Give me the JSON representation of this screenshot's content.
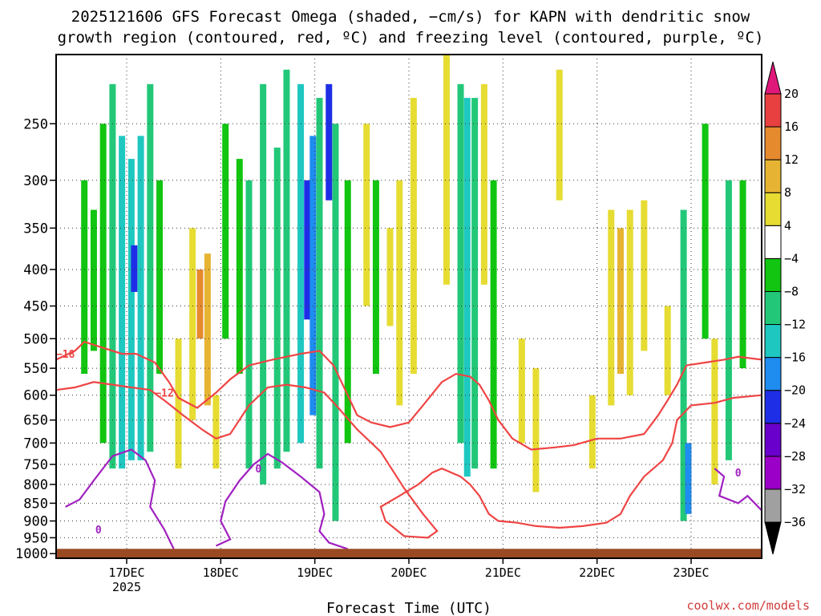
{
  "chart_data": {
    "type": "heatmap",
    "title_line1": "2025121606 GFS Forecast Omega (shaded, −cm/s) for KAPN with dendritic snow",
    "title_line2": "growth region (contoured, red, ºC) and freezing level (contoured, purple, ºC)",
    "xlabel": "Forecast Time (UTC)",
    "x_ticks": [
      {
        "label": "17DEC",
        "sub": "2025",
        "day": 17
      },
      {
        "label": "18DEC",
        "sub": "",
        "day": 18
      },
      {
        "label": "19DEC",
        "sub": "",
        "day": 19
      },
      {
        "label": "20DEC",
        "sub": "",
        "day": 20
      },
      {
        "label": "21DEC",
        "sub": "",
        "day": 21
      },
      {
        "label": "22DEC",
        "sub": "",
        "day": 22
      },
      {
        "label": "23DEC",
        "sub": "",
        "day": 23
      }
    ],
    "x_range_days": [
      16.25,
      23.75
    ],
    "y_axis": "pressure (hPa), reversed",
    "y_ticks": [
      250,
      300,
      350,
      400,
      450,
      500,
      550,
      600,
      650,
      700,
      750,
      800,
      850,
      900,
      950,
      1000
    ],
    "y_range_hpa": [
      200,
      1015
    ],
    "grid": "dotted",
    "colorbar": {
      "levels": [
        -36,
        -32,
        -28,
        -24,
        -20,
        -16,
        -12,
        -8,
        -4,
        4,
        8,
        12,
        16,
        20
      ],
      "colors": [
        "#000000",
        "#a0a0a0",
        "#9b00c8",
        "#6a00cc",
        "#1e2ee6",
        "#1f8cf0",
        "#1ec8c0",
        "#22c878",
        "#11c511",
        "#ffffff",
        "#e6dc32",
        "#e6b432",
        "#e68a2e",
        "#e84040",
        "#e0187a"
      ],
      "labels": [
        "−36",
        "−32",
        "−28",
        "−24",
        "−20",
        "−16",
        "−12",
        "−8",
        "−4",
        "4",
        "8",
        "12",
        "16",
        "20"
      ]
    },
    "omega_cells": [
      {
        "x": 16.55,
        "p1": 300,
        "p2": 560,
        "v": -5
      },
      {
        "x": 16.65,
        "p1": 330,
        "p2": 520,
        "v": -7
      },
      {
        "x": 16.75,
        "p1": 250,
        "p2": 700,
        "v": -6
      },
      {
        "x": 16.85,
        "p1": 220,
        "p2": 760,
        "v": -9
      },
      {
        "x": 16.95,
        "p1": 260,
        "p2": 760,
        "v": -12
      },
      {
        "x": 17.05,
        "p1": 280,
        "p2": 740,
        "v": -15
      },
      {
        "x": 17.08,
        "p1": 370,
        "p2": 430,
        "v": -22
      },
      {
        "x": 17.15,
        "p1": 260,
        "p2": 740,
        "v": -13
      },
      {
        "x": 17.25,
        "p1": 220,
        "p2": 720,
        "v": -9
      },
      {
        "x": 17.35,
        "p1": 300,
        "p2": 560,
        "v": -6
      },
      {
        "x": 17.55,
        "p1": 500,
        "p2": 760,
        "v": 5
      },
      {
        "x": 17.7,
        "p1": 350,
        "p2": 650,
        "v": 7
      },
      {
        "x": 17.78,
        "p1": 400,
        "p2": 500,
        "v": 16
      },
      {
        "x": 17.86,
        "p1": 380,
        "p2": 620,
        "v": 10
      },
      {
        "x": 17.95,
        "p1": 600,
        "p2": 760,
        "v": 5
      },
      {
        "x": 18.05,
        "p1": 250,
        "p2": 500,
        "v": -5
      },
      {
        "x": 18.2,
        "p1": 280,
        "p2": 560,
        "v": -7
      },
      {
        "x": 18.3,
        "p1": 300,
        "p2": 760,
        "v": -9
      },
      {
        "x": 18.45,
        "p1": 220,
        "p2": 800,
        "v": -8
      },
      {
        "x": 18.6,
        "p1": 270,
        "p2": 760,
        "v": -11
      },
      {
        "x": 18.7,
        "p1": 210,
        "p2": 720,
        "v": -9
      },
      {
        "x": 18.85,
        "p1": 220,
        "p2": 700,
        "v": -14
      },
      {
        "x": 18.92,
        "p1": 300,
        "p2": 470,
        "v": -22
      },
      {
        "x": 18.98,
        "p1": 260,
        "p2": 640,
        "v": -16
      },
      {
        "x": 19.05,
        "p1": 230,
        "p2": 760,
        "v": -11
      },
      {
        "x": 19.15,
        "p1": 220,
        "p2": 320,
        "v": -22
      },
      {
        "x": 19.22,
        "p1": 250,
        "p2": 900,
        "v": -8
      },
      {
        "x": 19.35,
        "p1": 300,
        "p2": 700,
        "v": -7
      },
      {
        "x": 19.55,
        "p1": 250,
        "p2": 450,
        "v": 5
      },
      {
        "x": 19.65,
        "p1": 300,
        "p2": 560,
        "v": -5
      },
      {
        "x": 19.8,
        "p1": 350,
        "p2": 480,
        "v": 7
      },
      {
        "x": 19.9,
        "p1": 300,
        "p2": 620,
        "v": 5
      },
      {
        "x": 20.05,
        "p1": 230,
        "p2": 560,
        "v": 5
      },
      {
        "x": 20.4,
        "p1": 200,
        "p2": 420,
        "v": 6
      },
      {
        "x": 20.55,
        "p1": 220,
        "p2": 700,
        "v": -8
      },
      {
        "x": 20.62,
        "p1": 230,
        "p2": 780,
        "v": -12
      },
      {
        "x": 20.7,
        "p1": 230,
        "p2": 760,
        "v": -10
      },
      {
        "x": 20.8,
        "p1": 220,
        "p2": 420,
        "v": 8
      },
      {
        "x": 20.9,
        "p1": 300,
        "p2": 760,
        "v": -6
      },
      {
        "x": 21.2,
        "p1": 500,
        "p2": 700,
        "v": 5
      },
      {
        "x": 21.35,
        "p1": 550,
        "p2": 820,
        "v": 6
      },
      {
        "x": 21.6,
        "p1": 210,
        "p2": 320,
        "v": 6
      },
      {
        "x": 21.95,
        "p1": 600,
        "p2": 760,
        "v": 6
      },
      {
        "x": 22.15,
        "p1": 330,
        "p2": 620,
        "v": 6
      },
      {
        "x": 22.25,
        "p1": 350,
        "p2": 560,
        "v": 10
      },
      {
        "x": 22.35,
        "p1": 330,
        "p2": 600,
        "v": 7
      },
      {
        "x": 22.5,
        "p1": 320,
        "p2": 520,
        "v": 6
      },
      {
        "x": 22.75,
        "p1": 450,
        "p2": 600,
        "v": 6
      },
      {
        "x": 22.92,
        "p1": 330,
        "p2": 900,
        "v": -8
      },
      {
        "x": 22.97,
        "p1": 700,
        "p2": 880,
        "v": -16
      },
      {
        "x": 23.15,
        "p1": 250,
        "p2": 500,
        "v": -6
      },
      {
        "x": 23.25,
        "p1": 500,
        "p2": 800,
        "v": 5
      },
      {
        "x": 23.4,
        "p1": 300,
        "p2": 740,
        "v": -10
      },
      {
        "x": 23.55,
        "p1": 300,
        "p2": 550,
        "v": -6
      }
    ],
    "contours": [
      {
        "color": "#ef4444",
        "label": "−18",
        "label_at": [
          16.35,
          525
        ],
        "points": [
          [
            16.25,
            535
          ],
          [
            16.45,
            520
          ],
          [
            16.55,
            505
          ],
          [
            16.75,
            515
          ],
          [
            16.95,
            525
          ],
          [
            17.1,
            525
          ],
          [
            17.3,
            540
          ],
          [
            17.45,
            575
          ],
          [
            17.55,
            605
          ],
          [
            17.75,
            625
          ],
          [
            17.95,
            595
          ],
          [
            18.1,
            570
          ],
          [
            18.3,
            545
          ],
          [
            18.55,
            535
          ],
          [
            18.85,
            525
          ],
          [
            19.05,
            520
          ],
          [
            19.2,
            545
          ],
          [
            19.35,
            600
          ],
          [
            19.45,
            640
          ],
          [
            19.6,
            655
          ],
          [
            19.8,
            665
          ],
          [
            20.0,
            655
          ],
          [
            20.15,
            620
          ],
          [
            20.35,
            575
          ],
          [
            20.5,
            560
          ],
          [
            20.65,
            565
          ],
          [
            20.75,
            580
          ],
          [
            20.85,
            610
          ],
          [
            20.95,
            650
          ],
          [
            21.1,
            690
          ],
          [
            21.3,
            715
          ],
          [
            21.55,
            710
          ],
          [
            21.75,
            705
          ],
          [
            22.0,
            690
          ],
          [
            22.25,
            690
          ],
          [
            22.5,
            680
          ],
          [
            22.65,
            640
          ],
          [
            22.75,
            610
          ],
          [
            22.85,
            580
          ],
          [
            22.95,
            545
          ],
          [
            23.15,
            540
          ],
          [
            23.35,
            535
          ],
          [
            23.5,
            530
          ],
          [
            23.75,
            535
          ]
        ]
      },
      {
        "color": "#ef4444",
        "label": "−12",
        "label_at": [
          17.4,
          595
        ],
        "points": [
          [
            16.25,
            590
          ],
          [
            16.45,
            585
          ],
          [
            16.65,
            575
          ],
          [
            16.85,
            580
          ],
          [
            17.05,
            585
          ],
          [
            17.25,
            590
          ],
          [
            17.4,
            610
          ],
          [
            17.6,
            640
          ],
          [
            17.8,
            670
          ],
          [
            17.95,
            690
          ],
          [
            18.1,
            680
          ],
          [
            18.3,
            620
          ],
          [
            18.5,
            585
          ],
          [
            18.7,
            580
          ],
          [
            18.9,
            585
          ],
          [
            19.1,
            595
          ],
          [
            19.25,
            625
          ],
          [
            19.45,
            670
          ],
          [
            19.7,
            720
          ],
          [
            19.95,
            810
          ],
          [
            20.15,
            880
          ],
          [
            20.3,
            930
          ],
          [
            20.2,
            950
          ],
          [
            19.95,
            945
          ],
          [
            19.75,
            900
          ],
          [
            19.7,
            860
          ],
          [
            19.9,
            830
          ],
          [
            20.1,
            800
          ],
          [
            20.25,
            770
          ],
          [
            20.35,
            760
          ],
          [
            20.55,
            780
          ],
          [
            20.65,
            800
          ],
          [
            20.75,
            830
          ],
          [
            20.85,
            880
          ],
          [
            20.95,
            900
          ],
          [
            21.15,
            905
          ],
          [
            21.35,
            915
          ],
          [
            21.6,
            920
          ],
          [
            21.85,
            915
          ],
          [
            22.1,
            905
          ],
          [
            22.25,
            880
          ],
          [
            22.35,
            830
          ],
          [
            22.5,
            780
          ],
          [
            22.7,
            740
          ],
          [
            22.8,
            700
          ],
          [
            22.85,
            650
          ],
          [
            23.0,
            620
          ],
          [
            23.25,
            615
          ],
          [
            23.45,
            605
          ],
          [
            23.75,
            600
          ]
        ]
      },
      {
        "color": "#a020c0",
        "label": "0",
        "label_at": [
          16.7,
          925
        ],
        "points": [
          [
            16.35,
            860
          ],
          [
            16.5,
            840
          ],
          [
            16.65,
            790
          ],
          [
            16.85,
            730
          ],
          [
            17.05,
            715
          ],
          [
            17.2,
            740
          ],
          [
            17.3,
            790
          ],
          [
            17.25,
            860
          ],
          [
            17.4,
            925
          ],
          [
            17.5,
            985
          ]
        ]
      },
      {
        "color": "#a020c0",
        "label": "0",
        "label_at": [
          18.4,
          760
        ],
        "points": [
          [
            17.95,
            975
          ],
          [
            18.1,
            955
          ],
          [
            18.0,
            900
          ],
          [
            18.05,
            845
          ],
          [
            18.2,
            790
          ],
          [
            18.35,
            750
          ],
          [
            18.5,
            725
          ],
          [
            18.65,
            745
          ],
          [
            18.85,
            780
          ],
          [
            19.05,
            820
          ],
          [
            19.1,
            880
          ],
          [
            19.05,
            930
          ],
          [
            19.15,
            965
          ],
          [
            19.35,
            985
          ]
        ]
      },
      {
        "color": "#a020c0",
        "label": "0",
        "label_at": [
          23.5,
          770
        ],
        "points": [
          [
            23.25,
            760
          ],
          [
            23.35,
            780
          ],
          [
            23.3,
            830
          ],
          [
            23.5,
            850
          ],
          [
            23.6,
            830
          ],
          [
            23.75,
            870
          ]
        ]
      }
    ],
    "terrain": {
      "color": "#9a4a23",
      "pressure_hpa": 1000
    },
    "credit": "coolwx.com/models"
  }
}
